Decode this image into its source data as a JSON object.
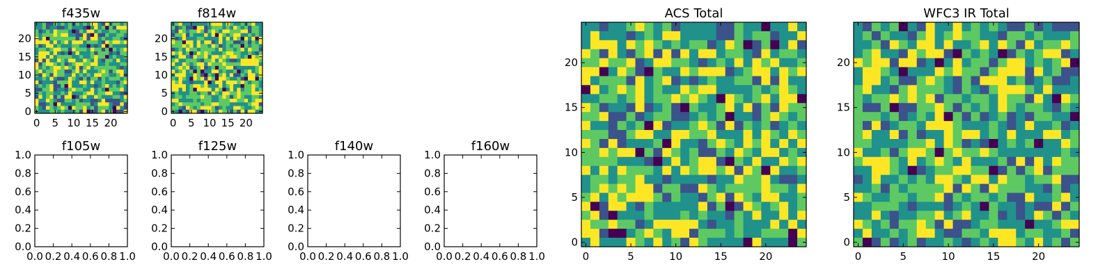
{
  "figure": {
    "colormap": [
      "#440154",
      "#3b528b",
      "#21918c",
      "#5ec962",
      "#fde725"
    ],
    "axis_color": "#000000"
  },
  "chart_data": [
    {
      "type": "heatmap",
      "title": "f435w",
      "xlabel": "",
      "ylabel": "",
      "x_ticks": [
        "0",
        "5",
        "10",
        "15",
        "20"
      ],
      "y_ticks": [
        "0",
        "5",
        "10",
        "15",
        "20"
      ],
      "xlim": [
        -0.5,
        24.5
      ],
      "ylim": [
        -0.5,
        24.5
      ],
      "grid_size": 25,
      "seed": 11,
      "bias": 0.04
    },
    {
      "type": "heatmap",
      "title": "f814w",
      "xlabel": "",
      "ylabel": "",
      "x_ticks": [
        "0",
        "5",
        "10",
        "15",
        "20"
      ],
      "y_ticks": [
        "0",
        "5",
        "10",
        "15",
        "20"
      ],
      "xlim": [
        -0.5,
        24.5
      ],
      "ylim": [
        -0.5,
        24.5
      ],
      "grid_size": 25,
      "seed": 23,
      "bias": 0.12
    },
    {
      "type": "empty",
      "title": "f105w",
      "x_ticks": [
        "0.0",
        "0.2",
        "0.4",
        "0.6",
        "0.8",
        "1.0"
      ],
      "y_ticks": [
        "0.0",
        "0.2",
        "0.4",
        "0.6",
        "0.8",
        "1.0"
      ],
      "xlim": [
        0,
        1
      ],
      "ylim": [
        0,
        1
      ]
    },
    {
      "type": "empty",
      "title": "f125w",
      "x_ticks": [
        "0.0",
        "0.2",
        "0.4",
        "0.6",
        "0.8",
        "1.0"
      ],
      "y_ticks": [
        "0.0",
        "0.2",
        "0.4",
        "0.6",
        "0.8",
        "1.0"
      ],
      "xlim": [
        0,
        1
      ],
      "ylim": [
        0,
        1
      ]
    },
    {
      "type": "empty",
      "title": "f140w",
      "x_ticks": [
        "0.0",
        "0.2",
        "0.4",
        "0.6",
        "0.8",
        "1.0"
      ],
      "y_ticks": [
        "0.0",
        "0.2",
        "0.4",
        "0.6",
        "0.8",
        "1.0"
      ],
      "xlim": [
        0,
        1
      ],
      "ylim": [
        0,
        1
      ]
    },
    {
      "type": "empty",
      "title": "f160w",
      "x_ticks": [
        "0.0",
        "0.2",
        "0.4",
        "0.6",
        "0.8",
        "1.0"
      ],
      "y_ticks": [
        "0.0",
        "0.2",
        "0.4",
        "0.6",
        "0.8",
        "1.0"
      ],
      "xlim": [
        0,
        1
      ],
      "ylim": [
        0,
        1
      ]
    },
    {
      "type": "heatmap",
      "title": "ACS Total",
      "xlabel": "",
      "ylabel": "",
      "x_ticks": [
        "0",
        "5",
        "10",
        "15",
        "20"
      ],
      "y_ticks": [
        "0",
        "5",
        "10",
        "15",
        "20"
      ],
      "xlim": [
        -0.5,
        24.5
      ],
      "ylim": [
        -0.5,
        24.5
      ],
      "grid_size": 25,
      "seed": 37,
      "bias": 0.08
    },
    {
      "type": "heatmap",
      "title": "WFC3 IR Total",
      "xlabel": "",
      "ylabel": "",
      "x_ticks": [
        "0",
        "5",
        "10",
        "15",
        "20"
      ],
      "y_ticks": [
        "0",
        "5",
        "10",
        "15",
        "20"
      ],
      "xlim": [
        -0.5,
        24.5
      ],
      "ylim": [
        -0.5,
        24.5
      ],
      "grid_size": 25,
      "seed": 53,
      "bias": 0.06
    }
  ]
}
